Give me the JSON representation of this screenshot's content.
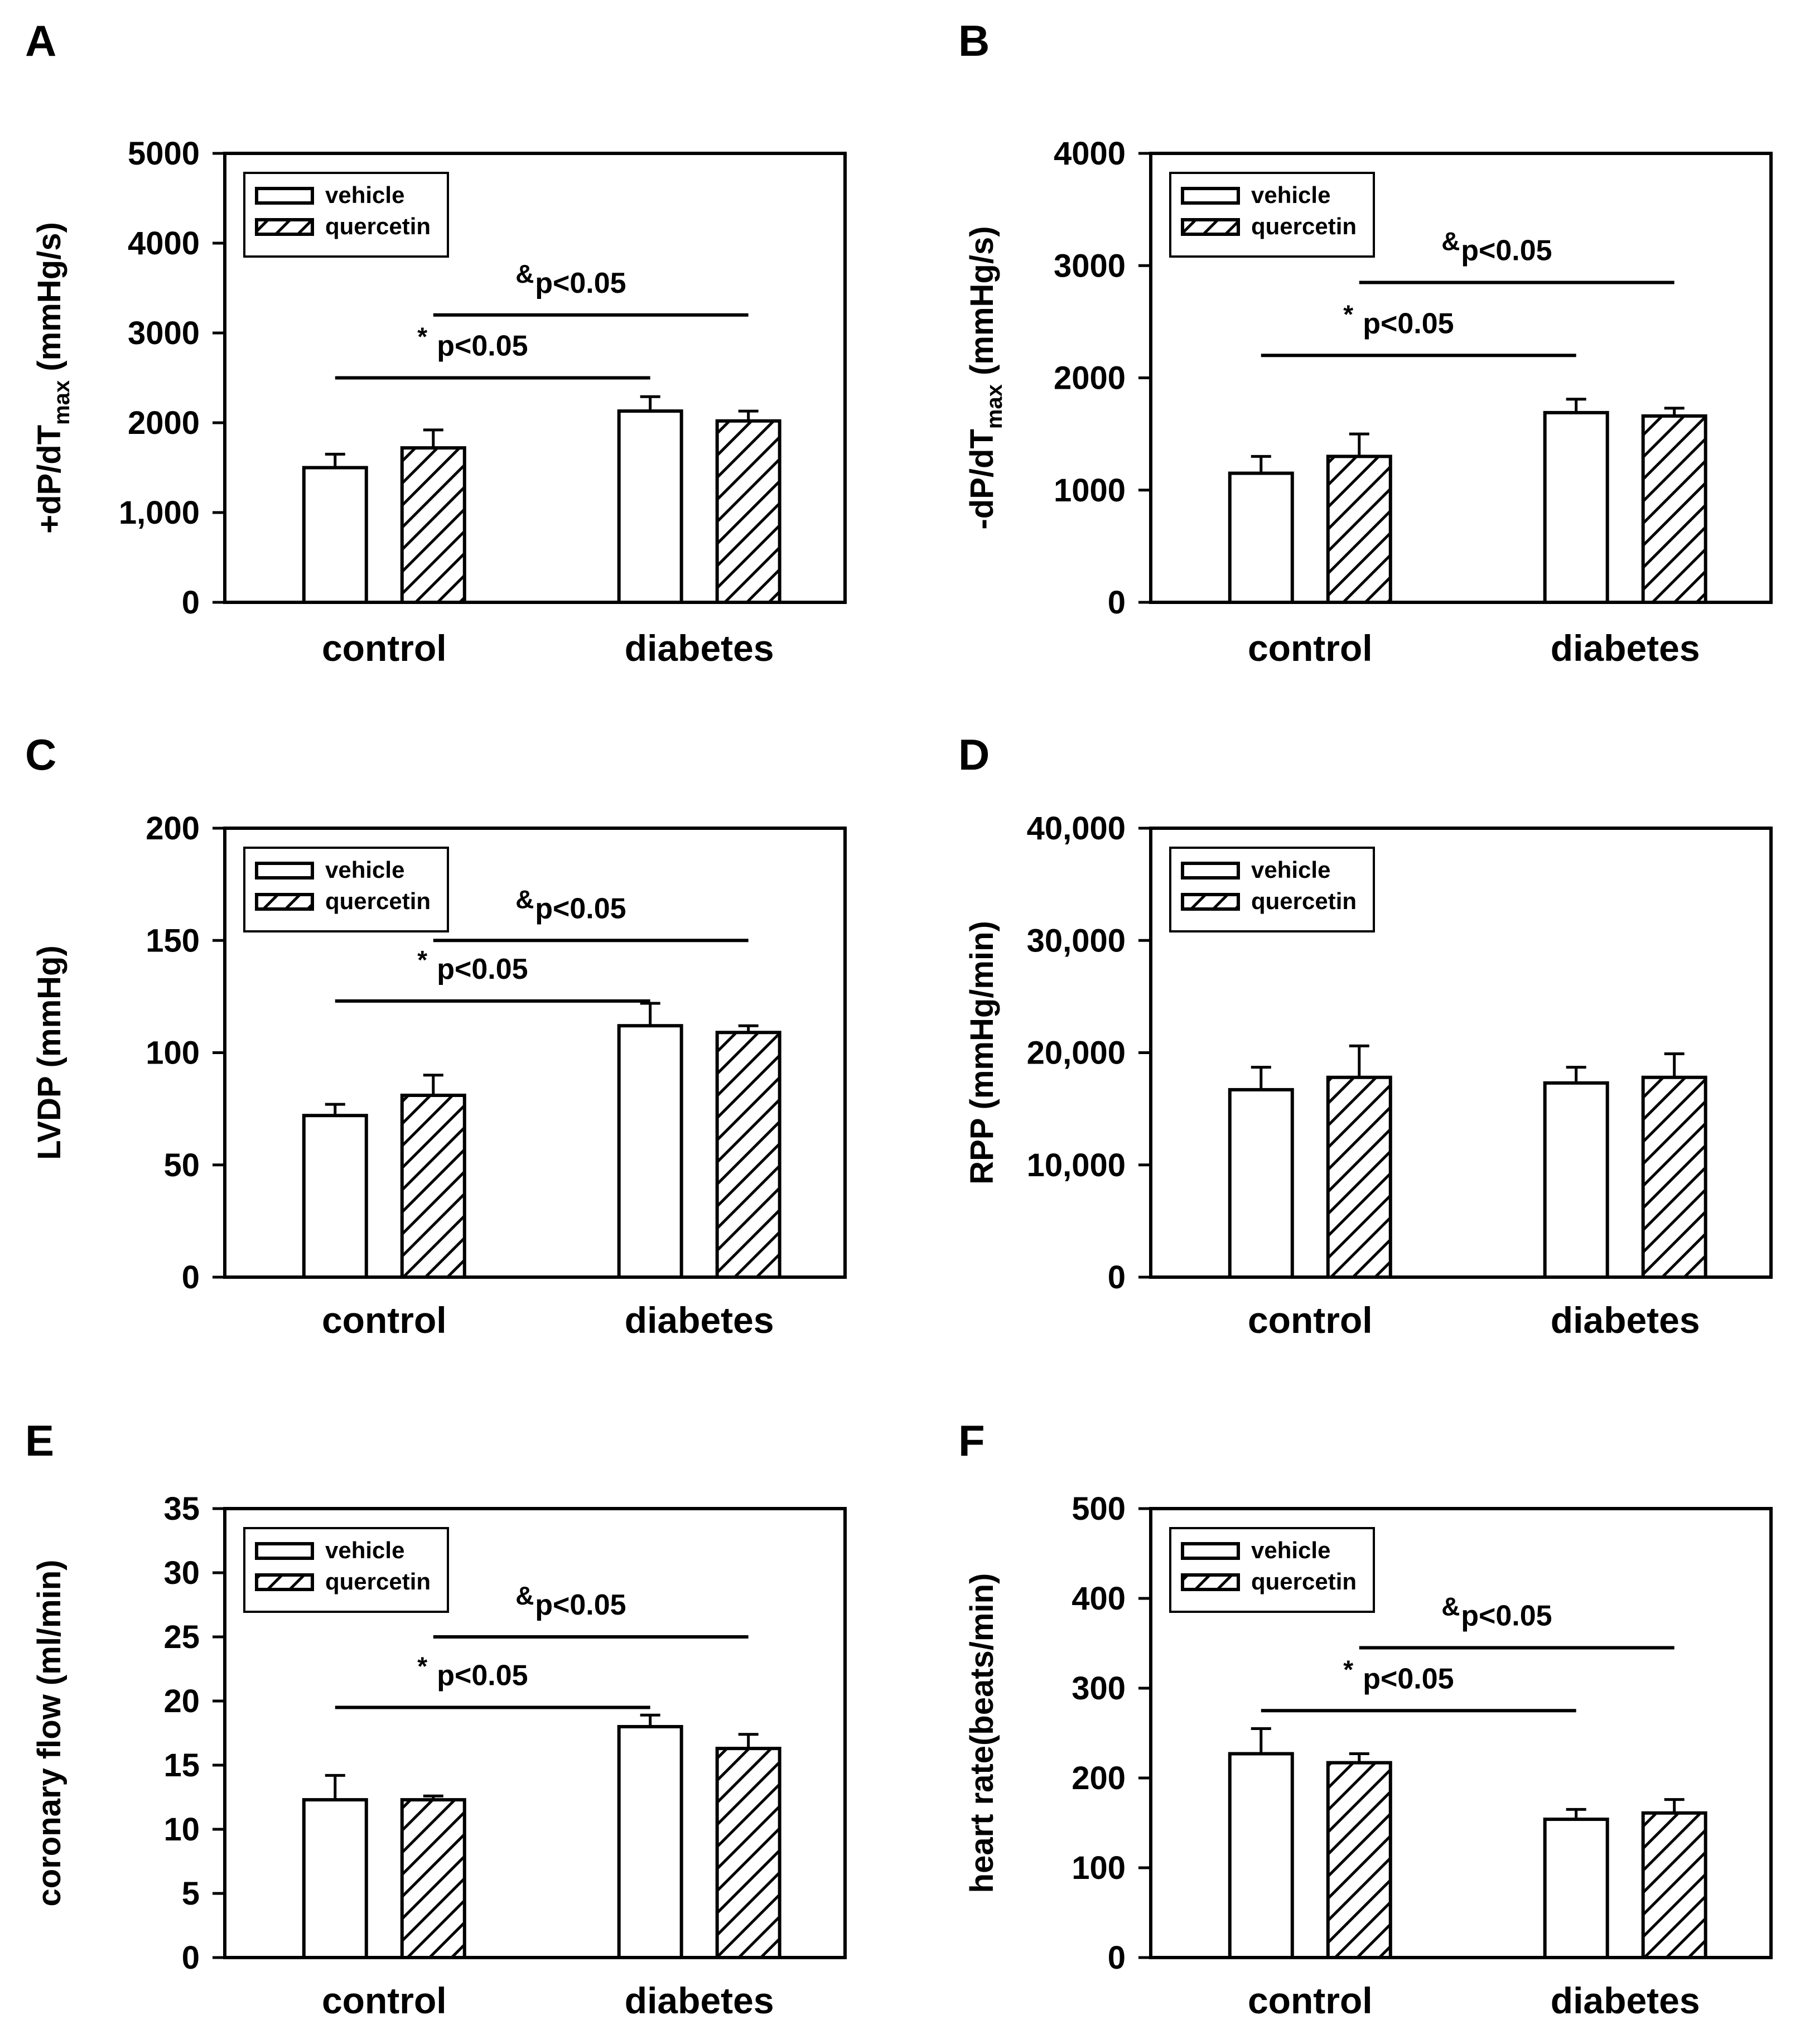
{
  "legend": {
    "series": [
      {
        "name": "vehicle",
        "pattern": "open"
      },
      {
        "name": "quercetin",
        "pattern": "hatched"
      }
    ]
  },
  "colors": {
    "ink": "#000000",
    "background": "#ffffff"
  },
  "chart_data": [
    {
      "panel": "A",
      "type": "bar",
      "ylabel": "+dP/dT",
      "ylabel_sub": "max",
      "ylabel_unit": " (mmHg/s)",
      "ylim": [
        0,
        5000
      ],
      "yticks": [
        0,
        1000,
        2000,
        3000,
        4000,
        5000
      ],
      "ytick_labels": [
        "0",
        "1,000",
        "2000",
        "3000",
        "4000",
        "5000"
      ],
      "categories": [
        "control",
        "diabetes"
      ],
      "series": [
        {
          "name": "vehicle",
          "values": [
            1500,
            2130
          ],
          "errors": [
            150,
            160
          ]
        },
        {
          "name": "quercetin",
          "values": [
            1720,
            2020
          ],
          "errors": [
            200,
            110
          ]
        }
      ],
      "annotations": [
        {
          "symbol": "*",
          "text": "p<0.05",
          "from": [
            "control",
            "vehicle"
          ],
          "to": [
            "diabetes",
            "vehicle"
          ],
          "level": 2500
        },
        {
          "symbol": "&",
          "text": "p<0.05",
          "from": [
            "control",
            "quercetin"
          ],
          "to": [
            "diabetes",
            "quercetin"
          ],
          "level": 3200
        }
      ]
    },
    {
      "panel": "B",
      "type": "bar",
      "ylabel": "-dP/dT",
      "ylabel_sub": "max",
      "ylabel_unit": " (mmHg/s)",
      "ylim": [
        0,
        4000
      ],
      "yticks": [
        0,
        1000,
        2000,
        3000,
        4000
      ],
      "ytick_labels": [
        "0",
        "1000",
        "2000",
        "3000",
        "4000"
      ],
      "categories": [
        "control",
        "diabetes"
      ],
      "series": [
        {
          "name": "vehicle",
          "values": [
            1150,
            1690
          ],
          "errors": [
            150,
            120
          ]
        },
        {
          "name": "quercetin",
          "values": [
            1300,
            1660
          ],
          "errors": [
            200,
            70
          ]
        }
      ],
      "annotations": [
        {
          "symbol": "*",
          "text": "p<0.05",
          "from": [
            "control",
            "vehicle"
          ],
          "to": [
            "diabetes",
            "vehicle"
          ],
          "level": 2200
        },
        {
          "symbol": "&",
          "text": "p<0.05",
          "from": [
            "control",
            "quercetin"
          ],
          "to": [
            "diabetes",
            "quercetin"
          ],
          "level": 2850
        }
      ]
    },
    {
      "panel": "C",
      "type": "bar",
      "ylabel": "LVDP (mmHg)",
      "ylim": [
        0,
        200
      ],
      "yticks": [
        0,
        50,
        100,
        150,
        200
      ],
      "ytick_labels": [
        "0",
        "50",
        "100",
        "150",
        "200"
      ],
      "categories": [
        "control",
        "diabetes"
      ],
      "series": [
        {
          "name": "vehicle",
          "values": [
            72,
            112
          ],
          "errors": [
            5,
            10
          ]
        },
        {
          "name": "quercetin",
          "values": [
            81,
            109
          ],
          "errors": [
            9,
            3
          ]
        }
      ],
      "annotations": [
        {
          "symbol": "*",
          "text": "p<0.05",
          "from": [
            "control",
            "vehicle"
          ],
          "to": [
            "diabetes",
            "vehicle"
          ],
          "level": 123
        },
        {
          "symbol": "&",
          "text": "p<0.05",
          "from": [
            "control",
            "quercetin"
          ],
          "to": [
            "diabetes",
            "quercetin"
          ],
          "level": 150
        }
      ]
    },
    {
      "panel": "D",
      "type": "bar",
      "ylabel": "RPP (mmHg/min)",
      "ylim": [
        0,
        40000
      ],
      "yticks": [
        0,
        10000,
        20000,
        30000,
        40000
      ],
      "ytick_labels": [
        "0",
        "10,000",
        "20,000",
        "30,000",
        "40,000"
      ],
      "categories": [
        "control",
        "diabetes"
      ],
      "series": [
        {
          "name": "vehicle",
          "values": [
            16700,
            17300
          ],
          "errors": [
            2000,
            1400
          ]
        },
        {
          "name": "quercetin",
          "values": [
            17800,
            17800
          ],
          "errors": [
            2800,
            2100
          ]
        }
      ],
      "annotations": []
    },
    {
      "panel": "E",
      "type": "bar",
      "ylabel": "coronary flow (ml/min)",
      "ylim": [
        0,
        35
      ],
      "yticks": [
        0,
        5,
        10,
        15,
        20,
        25,
        30,
        35
      ],
      "ytick_labels": [
        "0",
        "5",
        "10",
        "15",
        "20",
        "25",
        "30",
        "35"
      ],
      "categories": [
        "control",
        "diabetes"
      ],
      "series": [
        {
          "name": "vehicle",
          "values": [
            12.3,
            18.0
          ],
          "errors": [
            1.9,
            0.9
          ]
        },
        {
          "name": "quercetin",
          "values": [
            12.3,
            16.3
          ],
          "errors": [
            0.3,
            1.1
          ]
        }
      ],
      "annotations": [
        {
          "symbol": "*",
          "text": "p<0.05",
          "from": [
            "control",
            "vehicle"
          ],
          "to": [
            "diabetes",
            "vehicle"
          ],
          "level": 19.5
        },
        {
          "symbol": "&",
          "text": "p<0.05",
          "from": [
            "control",
            "quercetin"
          ],
          "to": [
            "diabetes",
            "quercetin"
          ],
          "level": 25
        }
      ]
    },
    {
      "panel": "F",
      "type": "bar",
      "ylabel": "heart rate(beats/min)",
      "ylim": [
        0,
        500
      ],
      "yticks": [
        0,
        100,
        200,
        300,
        400,
        500
      ],
      "ytick_labels": [
        "0",
        "100",
        "200",
        "300",
        "400",
        "500"
      ],
      "categories": [
        "control",
        "diabetes"
      ],
      "series": [
        {
          "name": "vehicle",
          "values": [
            227,
            154
          ],
          "errors": [
            28,
            11
          ]
        },
        {
          "name": "quercetin",
          "values": [
            217,
            161
          ],
          "errors": [
            10,
            15
          ]
        }
      ],
      "annotations": [
        {
          "symbol": "*",
          "text": "p<0.05",
          "from": [
            "control",
            "vehicle"
          ],
          "to": [
            "diabetes",
            "vehicle"
          ],
          "level": 275
        },
        {
          "symbol": "&",
          "text": "p<0.05",
          "from": [
            "control",
            "quercetin"
          ],
          "to": [
            "diabetes",
            "quercetin"
          ],
          "level": 345
        }
      ]
    }
  ]
}
